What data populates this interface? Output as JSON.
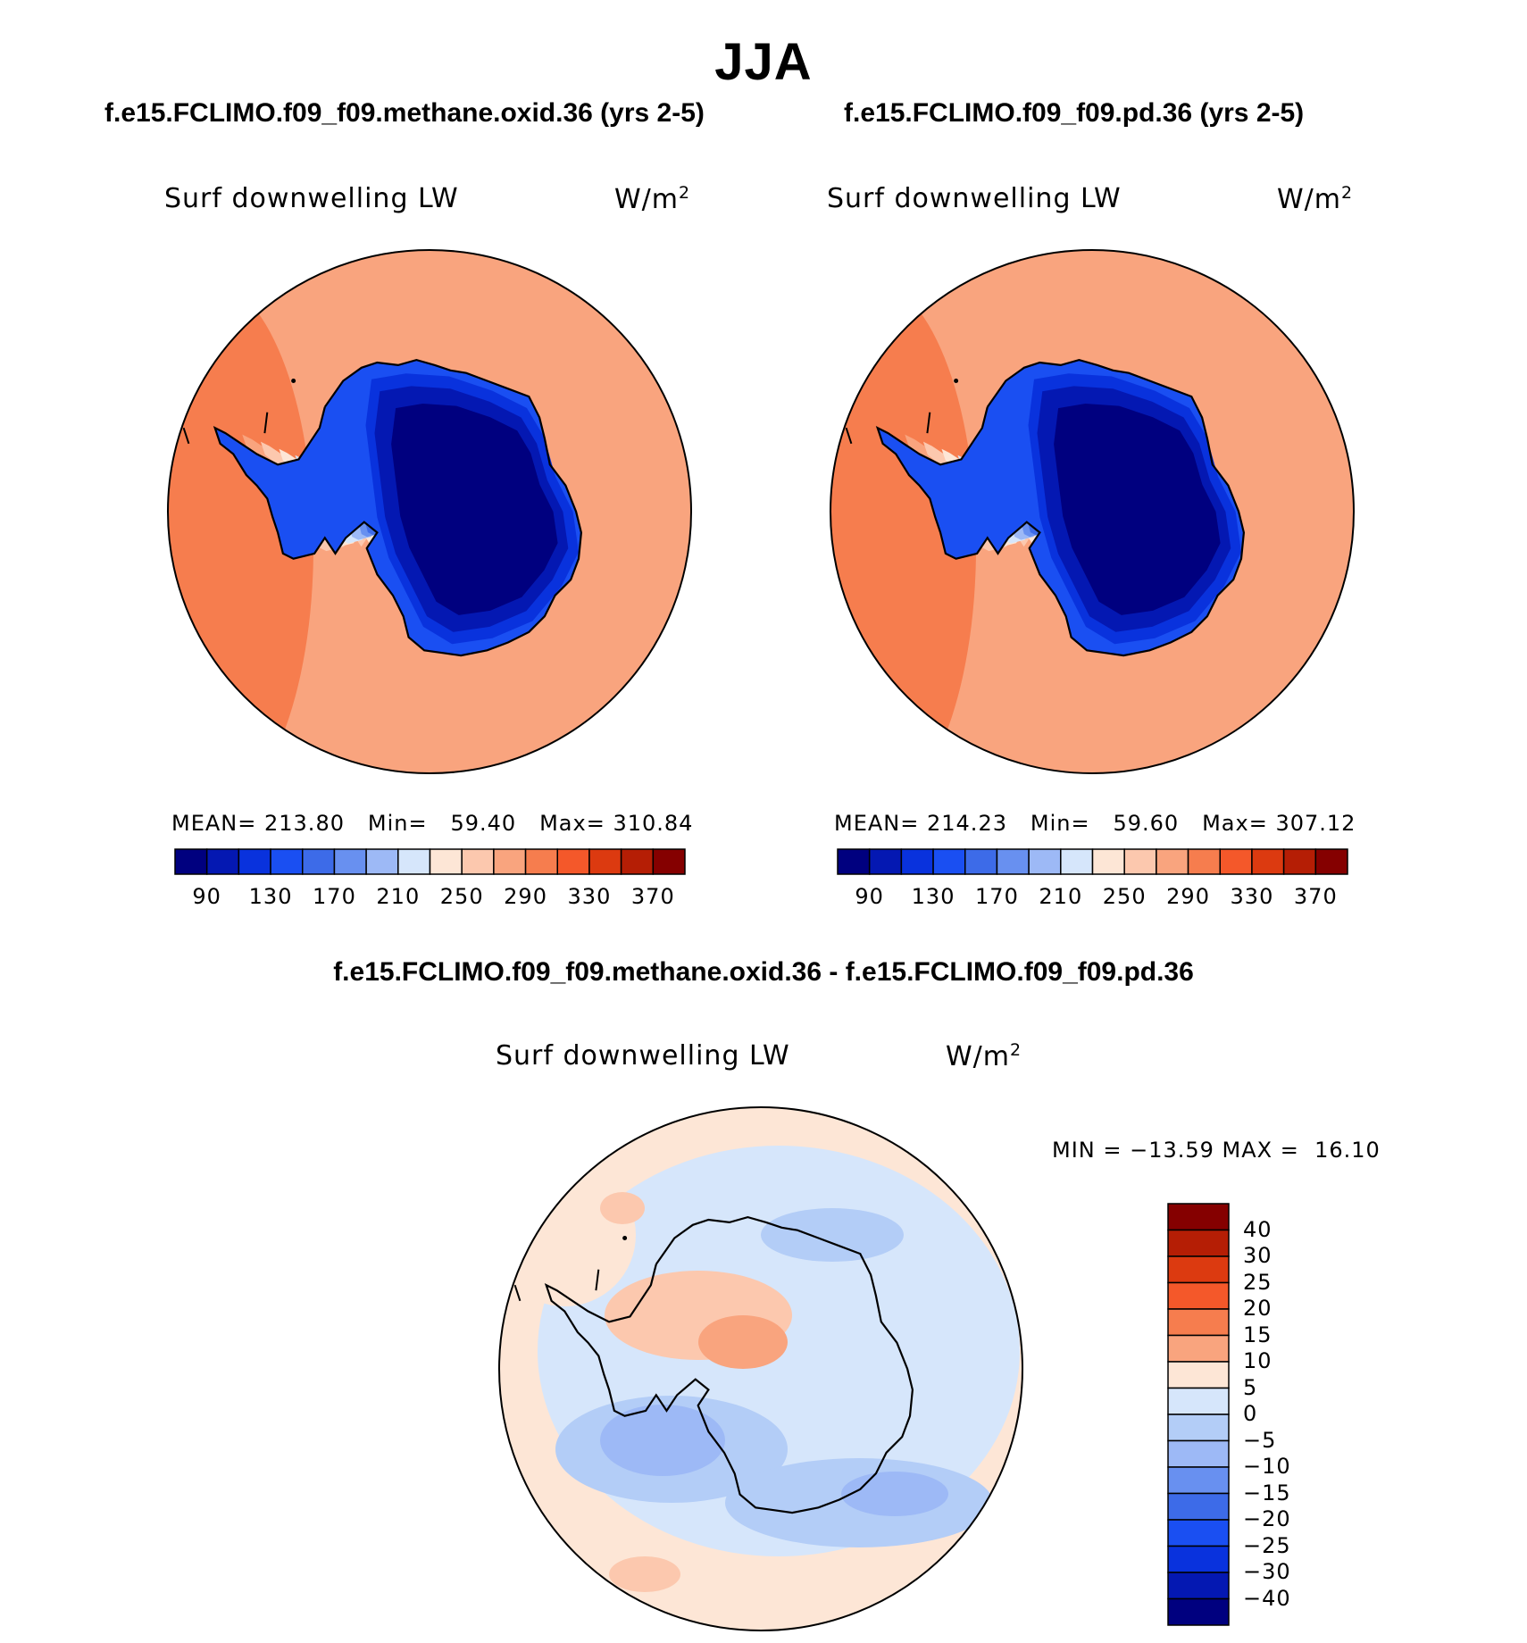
{
  "figure": {
    "title": "JJA",
    "panels": [
      {
        "case_title": "f.e15.FCLIMO.f09_f09.methane.oxid.36 (yrs 2-5)",
        "variable": "Surf downwelling LW",
        "units": "W/m",
        "units_sup": "2",
        "stats": {
          "mean_label": "MEAN=",
          "mean": "213.80",
          "min_label": "Min=",
          "min": "59.40",
          "max_label": "Max=",
          "max": "310.84"
        }
      },
      {
        "case_title": "f.e15.FCLIMO.f09_f09.pd.36 (yrs 2-5)",
        "variable": "Surf downwelling LW",
        "units": "W/m",
        "units_sup": "2",
        "stats": {
          "mean_label": "MEAN=",
          "mean": "214.23",
          "min_label": "Min=",
          "min": "59.60",
          "max_label": "Max=",
          "max": "307.12"
        }
      }
    ],
    "colorbar_ticks": [
      "90",
      "130",
      "170",
      "210",
      "250",
      "290",
      "330",
      "370"
    ],
    "colorbar_colors": [
      "#00007f",
      "#0418b2",
      "#0932dd",
      "#1a4ff2",
      "#3d6be8",
      "#6890f0",
      "#9db9f6",
      "#d6e6fb",
      "#fde6d6",
      "#fcc8ae",
      "#f9a47e",
      "#f67d4e",
      "#f4582a",
      "#dc3a10",
      "#b51e05",
      "#850000"
    ],
    "diff": {
      "title": "f.e15.FCLIMO.f09_f09.methane.oxid.36 - f.e15.FCLIMO.f09_f09.pd.36",
      "variable": "Surf downwelling LW",
      "units": "W/m",
      "units_sup": "2",
      "minmax": "MIN = −13.59 MAX =  16.10",
      "ticks": [
        "40",
        "30",
        "25",
        "20",
        "15",
        "10",
        "5",
        "0",
        "−5",
        "−10",
        "−15",
        "−20",
        "−25",
        "−30",
        "−40"
      ],
      "colors": [
        "#850000",
        "#b51e05",
        "#dc3a10",
        "#f4582a",
        "#f67d4e",
        "#f9a47e",
        "#fde6d6",
        "#d6e6fb",
        "#b3cdf7",
        "#9db9f6",
        "#6890f0",
        "#3d6be8",
        "#1a4ff2",
        "#0932dd",
        "#0418b2",
        "#00007f"
      ]
    },
    "map_colors": {
      "ocean_outer": "#f67d4e",
      "ring2": "#f9a47e",
      "ring3": "#fcc8ae",
      "ring4": "#fde6d6",
      "ring5": "#d6e6fb",
      "ring6": "#9db9f6",
      "ring7": "#6890f0",
      "ring8": "#3d6be8",
      "ring9": "#1a4ff2",
      "ring10": "#0932dd",
      "ring11": "#0418b2",
      "core": "#00007f",
      "diff_bg": "#fde6d6",
      "diff_light_blue": "#d6e6fb",
      "diff_mid_blue": "#b3cdf7",
      "diff_blue": "#9db9f6",
      "diff_orange": "#fcc8ae",
      "diff_dark_orange": "#f9a47e"
    }
  }
}
